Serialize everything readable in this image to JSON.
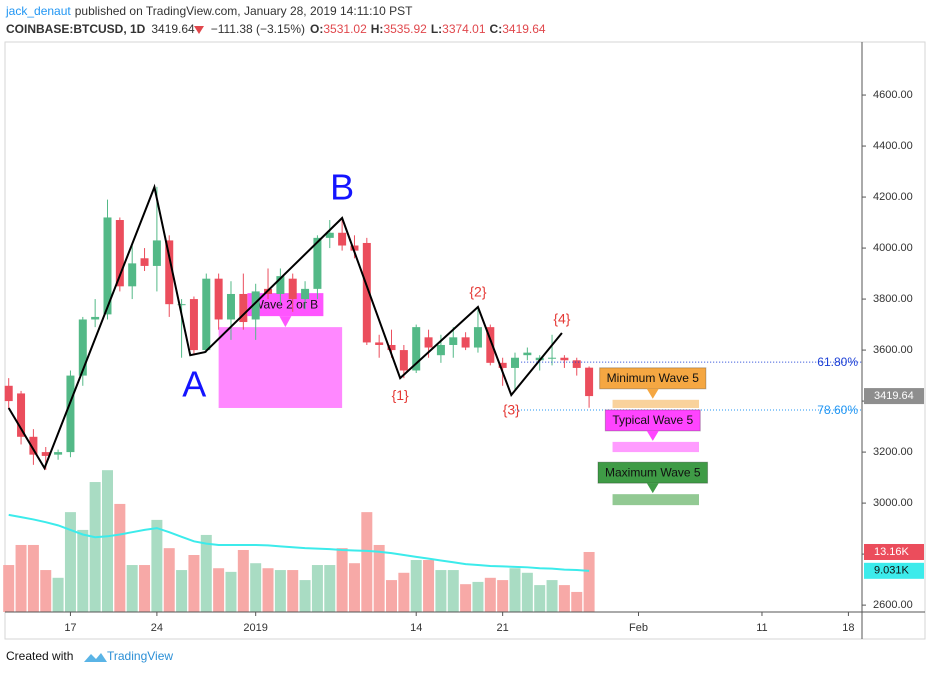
{
  "header": {
    "author": "jack_denaut",
    "published": "published on TradingView.com, January 28, 2019 14:11:10 PST",
    "symbol": "COINBASE:BTCUSD, 1D",
    "change": "−111.38 (−3.15%)",
    "o": "O:",
    "h": "H:",
    "l": "L:",
    "c": "C:"
  },
  "chart_data": {
    "type": "candlestick",
    "open": [
      3460,
      3430,
      3260,
      3200,
      3190,
      3200,
      3500,
      3720,
      3740,
      4110,
      3850,
      3960,
      3930,
      4030,
      3780,
      3800,
      3600,
      3880,
      3720,
      3820,
      3720,
      3840,
      3820,
      3880,
      3800,
      3840,
      4040,
      4060,
      4010,
      4020,
      3630,
      3620,
      3600,
      3520,
      3650,
      3580,
      3620,
      3650,
      3610,
      3690,
      3550,
      3530,
      3580,
      3560,
      3570,
      3570,
      3560,
      3531.02
    ],
    "high": [
      3490,
      3440,
      3290,
      3220,
      3210,
      3520,
      3730,
      3800,
      4190,
      4120,
      4010,
      4000,
      4240,
      4050,
      3800,
      3810,
      3900,
      3900,
      3870,
      3900,
      3860,
      3920,
      3920,
      3900,
      3870,
      4050,
      4110,
      4120,
      4050,
      4040,
      3660,
      3680,
      3620,
      3700,
      3680,
      3660,
      3690,
      3670,
      3770,
      3700,
      3570,
      3590,
      3610,
      3580,
      3660,
      3580,
      3570,
      3535.92
    ],
    "low": [
      3370,
      3230,
      3150,
      3130,
      3170,
      3180,
      3460,
      3690,
      3720,
      3830,
      3800,
      3910,
      3830,
      3730,
      3570,
      3580,
      3590,
      3680,
      3640,
      3680,
      3640,
      3800,
      3780,
      3750,
      3760,
      3800,
      4000,
      3990,
      3960,
      3620,
      3570,
      3570,
      3490,
      3510,
      3570,
      3550,
      3570,
      3600,
      3590,
      3540,
      3460,
      3440,
      3560,
      3520,
      3540,
      3530,
      3500,
      3374.01
    ],
    "close": [
      3400,
      3260,
      3190,
      3185,
      3200,
      3500,
      3720,
      3730,
      4120,
      3850,
      3940,
      3930,
      4030,
      3780,
      3780,
      3600,
      3880,
      3720,
      3820,
      3710,
      3830,
      3820,
      3890,
      3800,
      3840,
      4040,
      4060,
      4010,
      3990,
      3630,
      3620,
      3600,
      3520,
      3690,
      3610,
      3620,
      3650,
      3610,
      3690,
      3550,
      3530,
      3570,
      3590,
      3570,
      3570,
      3560,
      3530,
      3419.64
    ],
    "up_color": "#53b987",
    "down_color": "#eb4d5c",
    "volume": [
      10300,
      14700,
      14700,
      9200,
      7500,
      21900,
      18000,
      28500,
      31100,
      23700,
      10300,
      10300,
      20200,
      14000,
      9200,
      12500,
      16900,
      9600,
      8800,
      13600,
      10700,
      9600,
      9200,
      9200,
      7000,
      10300,
      10300,
      14000,
      10700,
      21900,
      14700,
      7000,
      8600,
      11400,
      11400,
      9200,
      9200,
      6100,
      6600,
      7500,
      7000,
      9600,
      8600,
      5900,
      7000,
      5900,
      4400,
      13160
    ],
    "volume_value_label": "13.16K",
    "volume_up_color": "#a9dcc3",
    "volume_down_color": "#f7a9a7",
    "volume_ylim": [
      0,
      125000
    ],
    "volume_ma": {
      "color": "#3cebeb",
      "value_label": "9.031K",
      "values": [
        21300,
        20800,
        20300,
        19700,
        19000,
        18000,
        17000,
        16400,
        16600,
        17000,
        17500,
        18000,
        18400,
        17500,
        16500,
        15500,
        15000,
        14700,
        14700,
        14700,
        14700,
        14600,
        14400,
        14200,
        14000,
        13900,
        13800,
        13600,
        13500,
        13400,
        13200,
        12900,
        12500,
        12100,
        11700,
        11300,
        10900,
        10500,
        10300,
        10100,
        10000,
        9900,
        9800,
        9600,
        9500,
        9300,
        9200,
        9031
      ]
    },
    "ylim": [
      2573,
      4808
    ],
    "yticks": [
      {
        "value": 2600,
        "label": "2600.00"
      },
      {
        "value": 2800,
        "label": "2800.00"
      },
      {
        "value": 3000,
        "label": "3000.00"
      },
      {
        "value": 3200,
        "label": "3200.00"
      },
      {
        "value": 3400,
        "label": "3400.00"
      },
      {
        "value": 3600,
        "label": "3600.00"
      },
      {
        "value": 3800,
        "label": "3800.00"
      },
      {
        "value": 4000,
        "label": "4000.00"
      },
      {
        "value": 4200,
        "label": "4200.00"
      },
      {
        "value": 4400,
        "label": "4400.00"
      },
      {
        "value": 4600,
        "label": "4600.00"
      }
    ],
    "xlim": [
      -0.3,
      69.1
    ],
    "xticks": [
      {
        "value": 5,
        "label": "17"
      },
      {
        "value": 12,
        "label": "24"
      },
      {
        "value": 20,
        "label": "2019"
      },
      {
        "value": 33,
        "label": "14"
      },
      {
        "value": 40,
        "label": "21"
      },
      {
        "value": 51,
        "label": "Feb"
      },
      {
        "value": 61,
        "label": "11"
      },
      {
        "value": 68,
        "label": "18"
      }
    ],
    "zigzag": {
      "color": "#000000",
      "x": [
        0,
        2.9,
        11.8,
        14.7,
        15.9,
        27,
        31.7,
        38,
        40.7,
        44.8
      ],
      "y": [
        3373,
        3137,
        4239,
        3580,
        3592,
        4118,
        3490,
        3769,
        3424,
        3667
      ]
    },
    "wave_labels": [
      {
        "text": "A",
        "color": "#1414ff"
      },
      {
        "text": "B",
        "color": "#1414ff"
      },
      {
        "text": "{1}",
        "color": "#e53935"
      },
      {
        "text": "{2}",
        "color": "#e53935"
      },
      {
        "text": "{3}",
        "color": "#e53935"
      },
      {
        "text": "{4}",
        "color": "#e53935"
      }
    ],
    "zones": [
      {
        "label": "Wave 2 or B",
        "color": "#ff88ff",
        "label_color": "#ff55ff",
        "top": 3690,
        "bottom": 3373,
        "from": 17,
        "to": 27
      }
    ],
    "fib_levels": [
      {
        "label": "61.80%",
        "color": "#1b3fd6",
        "price": 3553,
        "from": 41.5
      },
      {
        "label": "78.60%",
        "color": "#2196f3",
        "price": 3365,
        "from": 41
      }
    ],
    "targets": [
      {
        "label": "Minimum Wave 5",
        "color": "#f5a742",
        "band_color": "#f9d29c",
        "top": 3405,
        "bottom": 3373,
        "from": 48.9,
        "to": 55.9
      },
      {
        "label": "Typical Wave 5",
        "color": "#ff44ff",
        "band_color": "#ff9cff",
        "top": 3240,
        "bottom": 3200,
        "from": 48.9,
        "to": 55.9
      },
      {
        "label": "Maximum Wave 5",
        "color": "#3f9b46",
        "band_color": "#92c993",
        "top": 3035,
        "bottom": 2992,
        "from": 48.9,
        "to": 55.9
      }
    ]
  },
  "footer": {
    "created": "Created with",
    "brand": "TradingView"
  }
}
